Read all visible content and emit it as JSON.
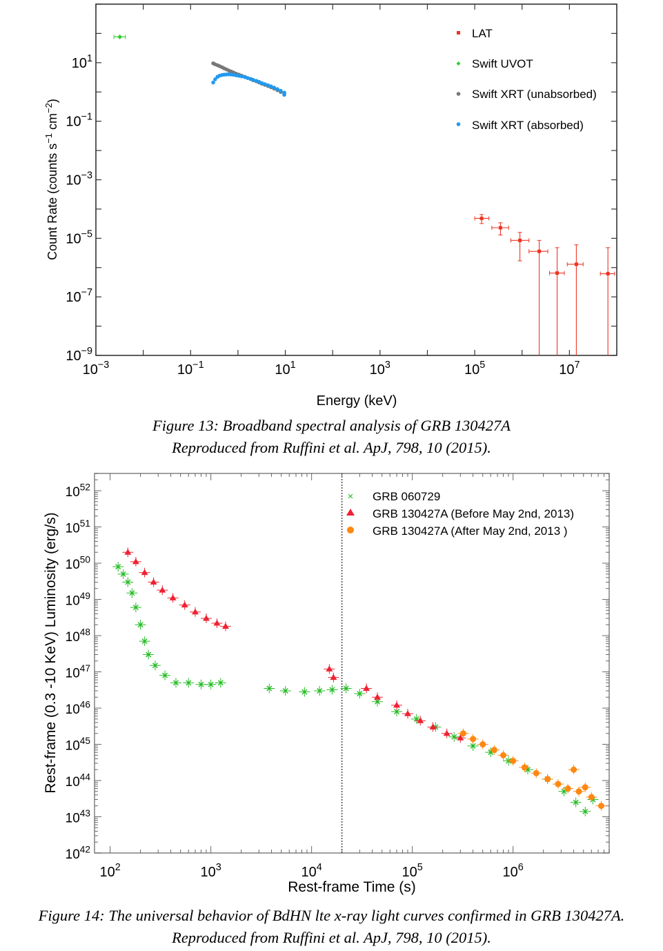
{
  "figure13": {
    "caption_line1": "Figure 13: Broadband spectral analysis of GRB 130427A",
    "caption_line2": "Reproduced from Ruffini et al. ApJ, 798, 10 (2015).",
    "colors": {
      "lat": "#ee3322",
      "uvot": "#33cc33",
      "xrt_unabs": "#777777",
      "xrt_abs": "#2299ee",
      "frame": "#333333"
    }
  },
  "figure14": {
    "caption_line1": "Figure 14: The universal behavior of BdHN lte x-ray light curves confirmed in GRB 130427A.",
    "caption_line2": "Reproduced from Ruffini et al. ApJ, 798, 10 (2015).",
    "colors": {
      "grb060729": "#22bb22",
      "before": "#ee2233",
      "after": "#ff8811",
      "frame": "#888888"
    }
  },
  "chart_data": [
    {
      "type": "scatter",
      "title": "",
      "xlabel": "Energy (keV)",
      "ylabel": "Count Rate (counts s^-1 cm^-2)",
      "xscale": "log",
      "yscale": "log",
      "xlim": [
        0.001,
        100000000
      ],
      "ylim": [
        1e-09,
        1000
      ],
      "xticks": [
        {
          "base": "10",
          "exp": "−3"
        },
        {
          "base": "10",
          "exp": "−1"
        },
        {
          "base": "10",
          "exp": "1"
        },
        {
          "base": "10",
          "exp": "3"
        },
        {
          "base": "10",
          "exp": "5"
        },
        {
          "base": "10",
          "exp": "7"
        }
      ],
      "yticks": [
        {
          "base": "10",
          "exp": "−9"
        },
        {
          "base": "10",
          "exp": "−7"
        },
        {
          "base": "10",
          "exp": "−5"
        },
        {
          "base": "10",
          "exp": "−3"
        },
        {
          "base": "10",
          "exp": "−1"
        },
        {
          "base": "10",
          "exp": "1"
        }
      ],
      "legend_position": "top-right",
      "series": [
        {
          "name": "LAT",
          "marker": "square",
          "points": [
            {
              "x": 140000,
              "y": 4.8e-05,
              "xlo": 100000,
              "xhi": 200000,
              "ylo": 3.2e-05,
              "yhi": 6.5e-05
            },
            {
              "x": 350000,
              "y": 2.3e-05,
              "xlo": 230000,
              "xhi": 520000,
              "ylo": 1.3e-05,
              "yhi": 3.4e-05
            },
            {
              "x": 900000,
              "y": 8.5e-06,
              "xlo": 580000,
              "xhi": 1400000,
              "ylo": 1.7e-06,
              "yhi": 1.6e-05
            },
            {
              "x": 2300000,
              "y": 3.6e-06,
              "xlo": 1400000,
              "xhi": 3500000,
              "ylo": 1e-09,
              "yhi": 8.5e-06
            },
            {
              "x": 5500000,
              "y": 6.5e-07,
              "xlo": 3800000,
              "xhi": 7800000,
              "ylo": 1e-09,
              "yhi": 4.8e-06
            },
            {
              "x": 14000000,
              "y": 1.3e-06,
              "xlo": 9000000,
              "xhi": 19500000,
              "ylo": 1e-09,
              "yhi": 6e-06
            },
            {
              "x": 65000000,
              "y": 6.2e-07,
              "xlo": 45000000,
              "xhi": 90000000,
              "ylo": 1e-09,
              "yhi": 4.8e-06
            }
          ]
        },
        {
          "name": "Swift UVOT",
          "marker": "diamond",
          "points": [
            {
              "x": 0.0032,
              "y": 76,
              "xlo": 0.0024,
              "xhi": 0.0042
            }
          ]
        },
        {
          "name": "Swift XRT (unabsorbed)",
          "marker": "circle",
          "points": [
            {
              "x": 0.3,
              "y": 9.5
            },
            {
              "x": 0.33,
              "y": 8.8
            },
            {
              "x": 0.37,
              "y": 8.2
            },
            {
              "x": 0.41,
              "y": 7.6
            },
            {
              "x": 0.46,
              "y": 7.0
            },
            {
              "x": 0.51,
              "y": 6.4
            },
            {
              "x": 0.57,
              "y": 5.9
            },
            {
              "x": 0.64,
              "y": 5.4
            },
            {
              "x": 0.72,
              "y": 5.0
            },
            {
              "x": 0.81,
              "y": 4.6
            },
            {
              "x": 0.92,
              "y": 4.2
            },
            {
              "x": 1.05,
              "y": 3.9
            },
            {
              "x": 1.2,
              "y": 3.6
            },
            {
              "x": 1.4,
              "y": 3.3
            },
            {
              "x": 1.6,
              "y": 3.0
            },
            {
              "x": 1.85,
              "y": 2.75
            },
            {
              "x": 2.1,
              "y": 2.5
            },
            {
              "x": 2.45,
              "y": 2.3
            },
            {
              "x": 2.8,
              "y": 2.1
            },
            {
              "x": 3.2,
              "y": 1.9
            },
            {
              "x": 3.7,
              "y": 1.75
            },
            {
              "x": 4.3,
              "y": 1.6
            },
            {
              "x": 5.0,
              "y": 1.45
            },
            {
              "x": 5.8,
              "y": 1.3
            },
            {
              "x": 6.8,
              "y": 1.15
            },
            {
              "x": 8.0,
              "y": 1.0
            },
            {
              "x": 9.5,
              "y": 0.85
            }
          ]
        },
        {
          "name": "Swift XRT (absorbed)",
          "marker": "circle",
          "points": [
            {
              "x": 0.3,
              "y": 2.1
            },
            {
              "x": 0.33,
              "y": 2.7
            },
            {
              "x": 0.37,
              "y": 3.3
            },
            {
              "x": 0.41,
              "y": 3.6
            },
            {
              "x": 0.46,
              "y": 3.8
            },
            {
              "x": 0.51,
              "y": 3.9
            },
            {
              "x": 0.57,
              "y": 3.95
            },
            {
              "x": 0.64,
              "y": 4.0
            },
            {
              "x": 0.72,
              "y": 3.95
            },
            {
              "x": 0.81,
              "y": 3.85
            },
            {
              "x": 0.92,
              "y": 3.7
            },
            {
              "x": 1.05,
              "y": 3.55
            },
            {
              "x": 1.2,
              "y": 3.4
            },
            {
              "x": 1.4,
              "y": 3.2
            },
            {
              "x": 1.6,
              "y": 3.0
            },
            {
              "x": 1.85,
              "y": 2.8
            },
            {
              "x": 2.1,
              "y": 2.6
            },
            {
              "x": 2.45,
              "y": 2.4
            },
            {
              "x": 2.8,
              "y": 2.2
            },
            {
              "x": 3.2,
              "y": 2.0
            },
            {
              "x": 3.7,
              "y": 1.85
            },
            {
              "x": 4.3,
              "y": 1.7
            },
            {
              "x": 5.0,
              "y": 1.55
            },
            {
              "x": 5.8,
              "y": 1.4
            },
            {
              "x": 6.8,
              "y": 1.25
            },
            {
              "x": 8.0,
              "y": 1.1
            },
            {
              "x": 9.5,
              "y": 0.95
            },
            {
              "x": 9.5,
              "y": 0.8
            }
          ]
        }
      ]
    },
    {
      "type": "scatter",
      "title": "",
      "xlabel": "Rest-frame Time (s)",
      "ylabel": "Rest-frame (0.3 -10 KeV) Luminosity (erg/s)",
      "xscale": "log",
      "yscale": "log",
      "xlim": [
        70,
        9000000
      ],
      "ylim": [
        1e+42,
        3e+52
      ],
      "xticks": [
        {
          "base": "10",
          "exp": "2"
        },
        {
          "base": "10",
          "exp": "3"
        },
        {
          "base": "10",
          "exp": "4"
        },
        {
          "base": "10",
          "exp": "5"
        },
        {
          "base": "10",
          "exp": "6"
        }
      ],
      "yticks": [
        {
          "base": "10",
          "exp": "42"
        },
        {
          "base": "10",
          "exp": "43"
        },
        {
          "base": "10",
          "exp": "44"
        },
        {
          "base": "10",
          "exp": "45"
        },
        {
          "base": "10",
          "exp": "46"
        },
        {
          "base": "10",
          "exp": "47"
        },
        {
          "base": "10",
          "exp": "48"
        },
        {
          "base": "10",
          "exp": "49"
        },
        {
          "base": "10",
          "exp": "50"
        },
        {
          "base": "10",
          "exp": "51"
        },
        {
          "base": "10",
          "exp": "52"
        }
      ],
      "vertical_reference_line_x": 20000,
      "legend_position": "top-right",
      "series": [
        {
          "name": "GRB 060729",
          "marker": "x",
          "points": [
            {
              "x": 120,
              "y": 8e+49
            },
            {
              "x": 135,
              "y": 5e+49
            },
            {
              "x": 150,
              "y": 3e+49
            },
            {
              "x": 165,
              "y": 1.5e+49
            },
            {
              "x": 180,
              "y": 6e+48
            },
            {
              "x": 200,
              "y": 2e+48
            },
            {
              "x": 220,
              "y": 7e+47
            },
            {
              "x": 240,
              "y": 3e+47
            },
            {
              "x": 280,
              "y": 1.5e+47
            },
            {
              "x": 350,
              "y": 8e+46
            },
            {
              "x": 450,
              "y": 5e+46
            },
            {
              "x": 600,
              "y": 5e+46
            },
            {
              "x": 800,
              "y": 4.5e+46
            },
            {
              "x": 1000,
              "y": 4.5e+46
            },
            {
              "x": 1250,
              "y": 5e+46
            },
            {
              "x": 3800,
              "y": 3.5e+46
            },
            {
              "x": 5500,
              "y": 3e+46
            },
            {
              "x": 8500,
              "y": 2.8e+46
            },
            {
              "x": 12000,
              "y": 3e+46
            },
            {
              "x": 16000,
              "y": 3.2e+46
            },
            {
              "x": 22000,
              "y": 3.5e+46
            },
            {
              "x": 30000,
              "y": 2.5e+46
            },
            {
              "x": 45000,
              "y": 1.5e+46
            },
            {
              "x": 70000,
              "y": 8e+45
            },
            {
              "x": 110000,
              "y": 5e+45
            },
            {
              "x": 170000,
              "y": 3e+45
            },
            {
              "x": 260000,
              "y": 1.6e+45
            },
            {
              "x": 400000,
              "y": 9e+44
            },
            {
              "x": 600000,
              "y": 6e+44
            },
            {
              "x": 900000,
              "y": 3.5e+44
            },
            {
              "x": 1400000,
              "y": 2e+44
            },
            {
              "x": 2200000,
              "y": 1.1e+44
            },
            {
              "x": 3200000,
              "y": 5e+43
            },
            {
              "x": 4200000,
              "y": 2.5e+43
            },
            {
              "x": 5200000,
              "y": 1.4e+43
            },
            {
              "x": 6200000,
              "y": 3e+43
            }
          ]
        },
        {
          "name": "GRB 130427A (Before May 2nd, 2013)",
          "marker": "triangle",
          "points": [
            {
              "x": 150,
              "y": 2e+50
            },
            {
              "x": 180,
              "y": 1.1e+50
            },
            {
              "x": 220,
              "y": 5.5e+49
            },
            {
              "x": 270,
              "y": 3e+49
            },
            {
              "x": 330,
              "y": 1.8e+49
            },
            {
              "x": 420,
              "y": 1.1e+49
            },
            {
              "x": 550,
              "y": 7e+48
            },
            {
              "x": 700,
              "y": 4.5e+48
            },
            {
              "x": 900,
              "y": 3e+48
            },
            {
              "x": 1150,
              "y": 2.2e+48
            },
            {
              "x": 1400,
              "y": 1.8e+48
            },
            {
              "x": 15000,
              "y": 1.2e+47
            },
            {
              "x": 16500,
              "y": 7e+46
            },
            {
              "x": 35000,
              "y": 3.5e+46
            },
            {
              "x": 45000,
              "y": 2e+46
            },
            {
              "x": 70000,
              "y": 1.2e+46
            },
            {
              "x": 90000,
              "y": 7e+45
            },
            {
              "x": 120000,
              "y": 4.5e+45
            },
            {
              "x": 160000,
              "y": 3e+45
            },
            {
              "x": 220000,
              "y": 2e+45
            },
            {
              "x": 300000,
              "y": 1.5e+45
            }
          ]
        },
        {
          "name": "GRB 130427A (After May 2nd, 2013 )",
          "marker": "circle",
          "points": [
            {
              "x": 320000,
              "y": 2e+45
            },
            {
              "x": 400000,
              "y": 1.4e+45
            },
            {
              "x": 500000,
              "y": 1e+45
            },
            {
              "x": 650000,
              "y": 7e+44
            },
            {
              "x": 800000,
              "y": 5e+44
            },
            {
              "x": 1000000,
              "y": 3.5e+44
            },
            {
              "x": 1300000,
              "y": 2.3e+44
            },
            {
              "x": 1700000,
              "y": 1.6e+44
            },
            {
              "x": 2200000,
              "y": 1.1e+44
            },
            {
              "x": 2800000,
              "y": 8e+43
            },
            {
              "x": 3500000,
              "y": 6e+43
            },
            {
              "x": 4000000,
              "y": 2e+44
            },
            {
              "x": 4500000,
              "y": 5e+43
            },
            {
              "x": 5200000,
              "y": 6.5e+43
            },
            {
              "x": 6000000,
              "y": 3.5e+43
            },
            {
              "x": 7500000,
              "y": 2e+43
            }
          ]
        }
      ]
    }
  ]
}
